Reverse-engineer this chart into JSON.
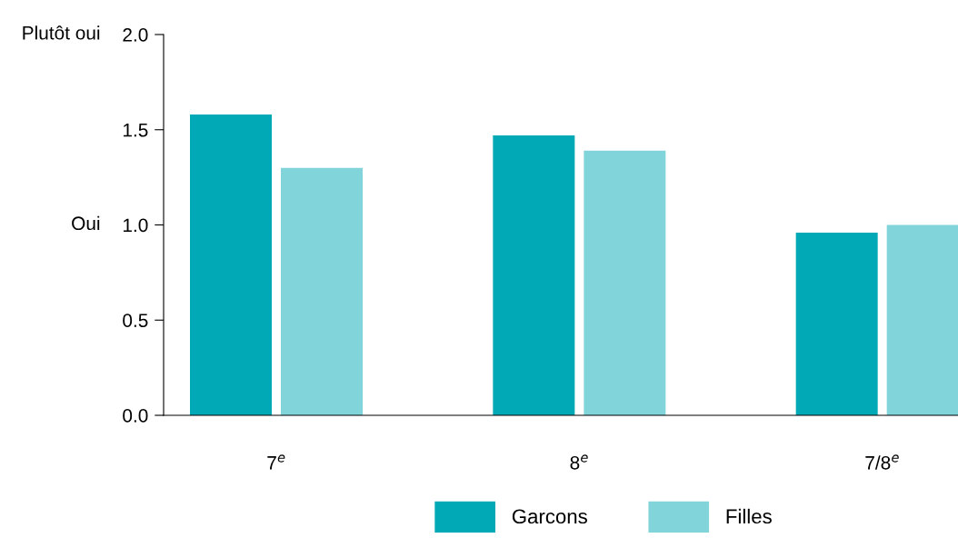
{
  "chart_data": {
    "type": "bar",
    "categories": [
      "7$^{e}$",
      "8$^{e}$",
      "7/8$^{e}$"
    ],
    "series": [
      {
        "name": "Garcons",
        "color": "#00a9b5",
        "values": [
          1.58,
          1.47,
          0.96
        ]
      },
      {
        "name": "Filles",
        "color": "#81d4da",
        "values": [
          1.3,
          1.39,
          1.0
        ]
      }
    ],
    "ylim": [
      0,
      2.0
    ],
    "yticks": [
      {
        "value": 0,
        "label": "0.0"
      },
      0.5,
      {
        "value": 1,
        "label": "1.0"
      },
      1.5,
      {
        "value": 2,
        "label": "2.0"
      }
    ],
    "annotations": [
      "Plutôt oui",
      "Oui"
    ],
    "grid": false,
    "legend": "bottom"
  }
}
